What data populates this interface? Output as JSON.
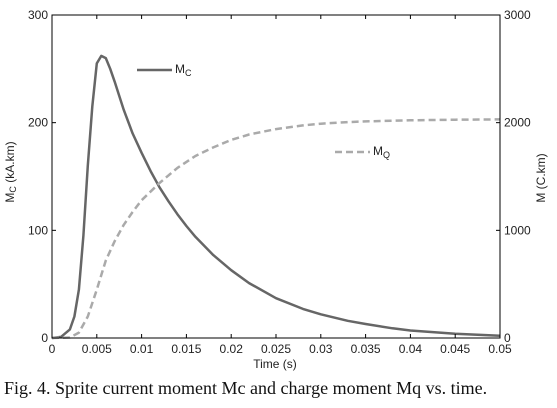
{
  "caption": "Fig. 4. Sprite current moment Mc and charge moment Mq vs. time.",
  "chart_data": {
    "type": "line",
    "xlabel": "Time (s)",
    "ylabel_left": {
      "main": "M",
      "sub": "C",
      "rest": " (kA.km)"
    },
    "ylabel_right": {
      "main": "M",
      "rest": " (C.km)"
    },
    "xlim": [
      0,
      0.05
    ],
    "ylim_left": [
      0,
      300
    ],
    "ylim_right": [
      0,
      3000
    ],
    "xticks": [
      0,
      0.005,
      0.01,
      0.015,
      0.02,
      0.025,
      0.03,
      0.035,
      0.04,
      0.045,
      0.05
    ],
    "xtick_labels": [
      "0",
      "0.005",
      "0.01",
      "0.015",
      "0.02",
      "0.025",
      "0.03",
      "0.035",
      "0.04",
      "0.045",
      "0.05"
    ],
    "yticks_left": [
      0,
      100,
      200,
      300
    ],
    "ytick_labels_left": [
      "0",
      "100",
      "200",
      "300"
    ],
    "yticks_right": [
      0,
      1000,
      2000,
      3000
    ],
    "ytick_labels_right": [
      "0",
      "1000",
      "2000",
      "3000"
    ],
    "grid": false,
    "series": [
      {
        "name": "MC",
        "legend_main": "M",
        "legend_sub": "C",
        "axis": "left",
        "color": "#666666",
        "dash": "solid",
        "x": [
          0,
          0.001,
          0.002,
          0.0025,
          0.003,
          0.0035,
          0.004,
          0.0045,
          0.005,
          0.0055,
          0.006,
          0.0065,
          0.007,
          0.0075,
          0.008,
          0.009,
          0.01,
          0.011,
          0.012,
          0.013,
          0.014,
          0.015,
          0.016,
          0.018,
          0.02,
          0.022,
          0.025,
          0.028,
          0.03,
          0.033,
          0.035,
          0.038,
          0.04,
          0.045,
          0.05
        ],
        "y": [
          0,
          1,
          8,
          20,
          45,
          95,
          160,
          215,
          255,
          262,
          260,
          250,
          238,
          225,
          212,
          190,
          172,
          155,
          140,
          127,
          115,
          104,
          94,
          77,
          63,
          51,
          37,
          27,
          22,
          16,
          13,
          9,
          7,
          4,
          2
        ]
      },
      {
        "name": "MQ",
        "legend_main": "M",
        "legend_sub": "Q",
        "axis": "right",
        "color": "#aaaaaa",
        "dash": "dashed",
        "x": [
          0,
          0.002,
          0.003,
          0.004,
          0.005,
          0.006,
          0.007,
          0.008,
          0.009,
          0.01,
          0.012,
          0.014,
          0.016,
          0.018,
          0.02,
          0.022,
          0.025,
          0.028,
          0.03,
          0.033,
          0.035,
          0.04,
          0.045,
          0.05
        ],
        "y": [
          0,
          5,
          50,
          200,
          450,
          720,
          900,
          1050,
          1170,
          1280,
          1440,
          1580,
          1690,
          1770,
          1840,
          1890,
          1940,
          1975,
          1990,
          2005,
          2012,
          2022,
          2028,
          2030
        ]
      }
    ]
  }
}
